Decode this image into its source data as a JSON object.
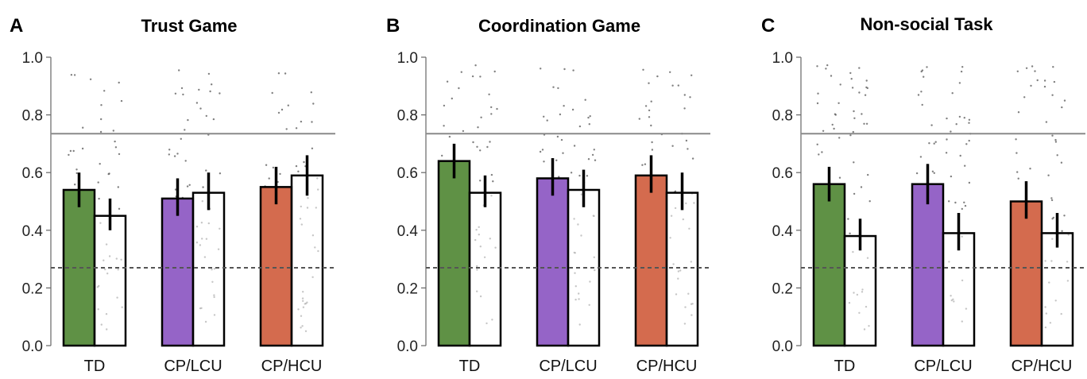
{
  "colors": {
    "td": "#5f9145",
    "cp_lcu": "#9564c7",
    "cp_hcu": "#d46b4e",
    "outline": "#000000",
    "reference_line": "#8a8a8a",
    "points": "#555555"
  },
  "chart_data": [
    {
      "type": "bar",
      "panel_letter": "A",
      "title": "Trust Game",
      "categories": [
        "TD",
        "CP/LCU",
        "CP/HCU"
      ],
      "yticks": [
        "0.0",
        "0.2",
        "0.4",
        "0.6",
        "0.8",
        "1.0"
      ],
      "ylim": [
        0,
        1
      ],
      "reference_lines": {
        "solid": 0.735,
        "dashed": 0.27
      },
      "bars": [
        {
          "group": "TD",
          "fill": "td",
          "value": 0.54,
          "err_low": 0.48,
          "err_high": 0.6
        },
        {
          "group": "TD",
          "fill": "white",
          "value": 0.45,
          "err_low": 0.4,
          "err_high": 0.51
        },
        {
          "group": "CP/LCU",
          "fill": "cp_lcu",
          "value": 0.51,
          "err_low": 0.45,
          "err_high": 0.58
        },
        {
          "group": "CP/LCU",
          "fill": "white",
          "value": 0.53,
          "err_low": 0.47,
          "err_high": 0.6
        },
        {
          "group": "CP/HCU",
          "fill": "cp_hcu",
          "value": 0.55,
          "err_low": 0.49,
          "err_high": 0.62
        },
        {
          "group": "CP/HCU",
          "fill": "white",
          "value": 0.59,
          "err_low": 0.52,
          "err_high": 0.66
        }
      ]
    },
    {
      "type": "bar",
      "panel_letter": "B",
      "title": "Coordination Game",
      "categories": [
        "TD",
        "CP/LCU",
        "CP/HCU"
      ],
      "yticks": [
        "0.0",
        "0.2",
        "0.4",
        "0.6",
        "0.8",
        "1.0"
      ],
      "ylim": [
        0,
        1
      ],
      "reference_lines": {
        "solid": 0.735,
        "dashed": 0.27
      },
      "bars": [
        {
          "group": "TD",
          "fill": "td",
          "value": 0.64,
          "err_low": 0.58,
          "err_high": 0.7
        },
        {
          "group": "TD",
          "fill": "white",
          "value": 0.53,
          "err_low": 0.48,
          "err_high": 0.59
        },
        {
          "group": "CP/LCU",
          "fill": "cp_lcu",
          "value": 0.58,
          "err_low": 0.52,
          "err_high": 0.65
        },
        {
          "group": "CP/LCU",
          "fill": "white",
          "value": 0.54,
          "err_low": 0.48,
          "err_high": 0.61
        },
        {
          "group": "CP/HCU",
          "fill": "cp_hcu",
          "value": 0.59,
          "err_low": 0.53,
          "err_high": 0.66
        },
        {
          "group": "CP/HCU",
          "fill": "white",
          "value": 0.53,
          "err_low": 0.47,
          "err_high": 0.6
        }
      ]
    },
    {
      "type": "bar",
      "panel_letter": "C",
      "title": "Non-social Task",
      "categories": [
        "TD",
        "CP/LCU",
        "CP/HCU"
      ],
      "yticks": [
        "0.0",
        "0.2",
        "0.4",
        "0.6",
        "0.8",
        "1.0"
      ],
      "ylim": [
        0,
        1
      ],
      "reference_lines": {
        "solid": 0.735,
        "dashed": 0.27
      },
      "bars": [
        {
          "group": "TD",
          "fill": "td",
          "value": 0.56,
          "err_low": 0.5,
          "err_high": 0.62
        },
        {
          "group": "TD",
          "fill": "white",
          "value": 0.38,
          "err_low": 0.33,
          "err_high": 0.44
        },
        {
          "group": "CP/LCU",
          "fill": "cp_lcu",
          "value": 0.56,
          "err_low": 0.49,
          "err_high": 0.63
        },
        {
          "group": "CP/LCU",
          "fill": "white",
          "value": 0.39,
          "err_low": 0.33,
          "err_high": 0.46
        },
        {
          "group": "CP/HCU",
          "fill": "cp_hcu",
          "value": 0.5,
          "err_low": 0.44,
          "err_high": 0.57
        },
        {
          "group": "CP/HCU",
          "fill": "white",
          "value": 0.39,
          "err_low": 0.34,
          "err_high": 0.46
        }
      ]
    }
  ]
}
